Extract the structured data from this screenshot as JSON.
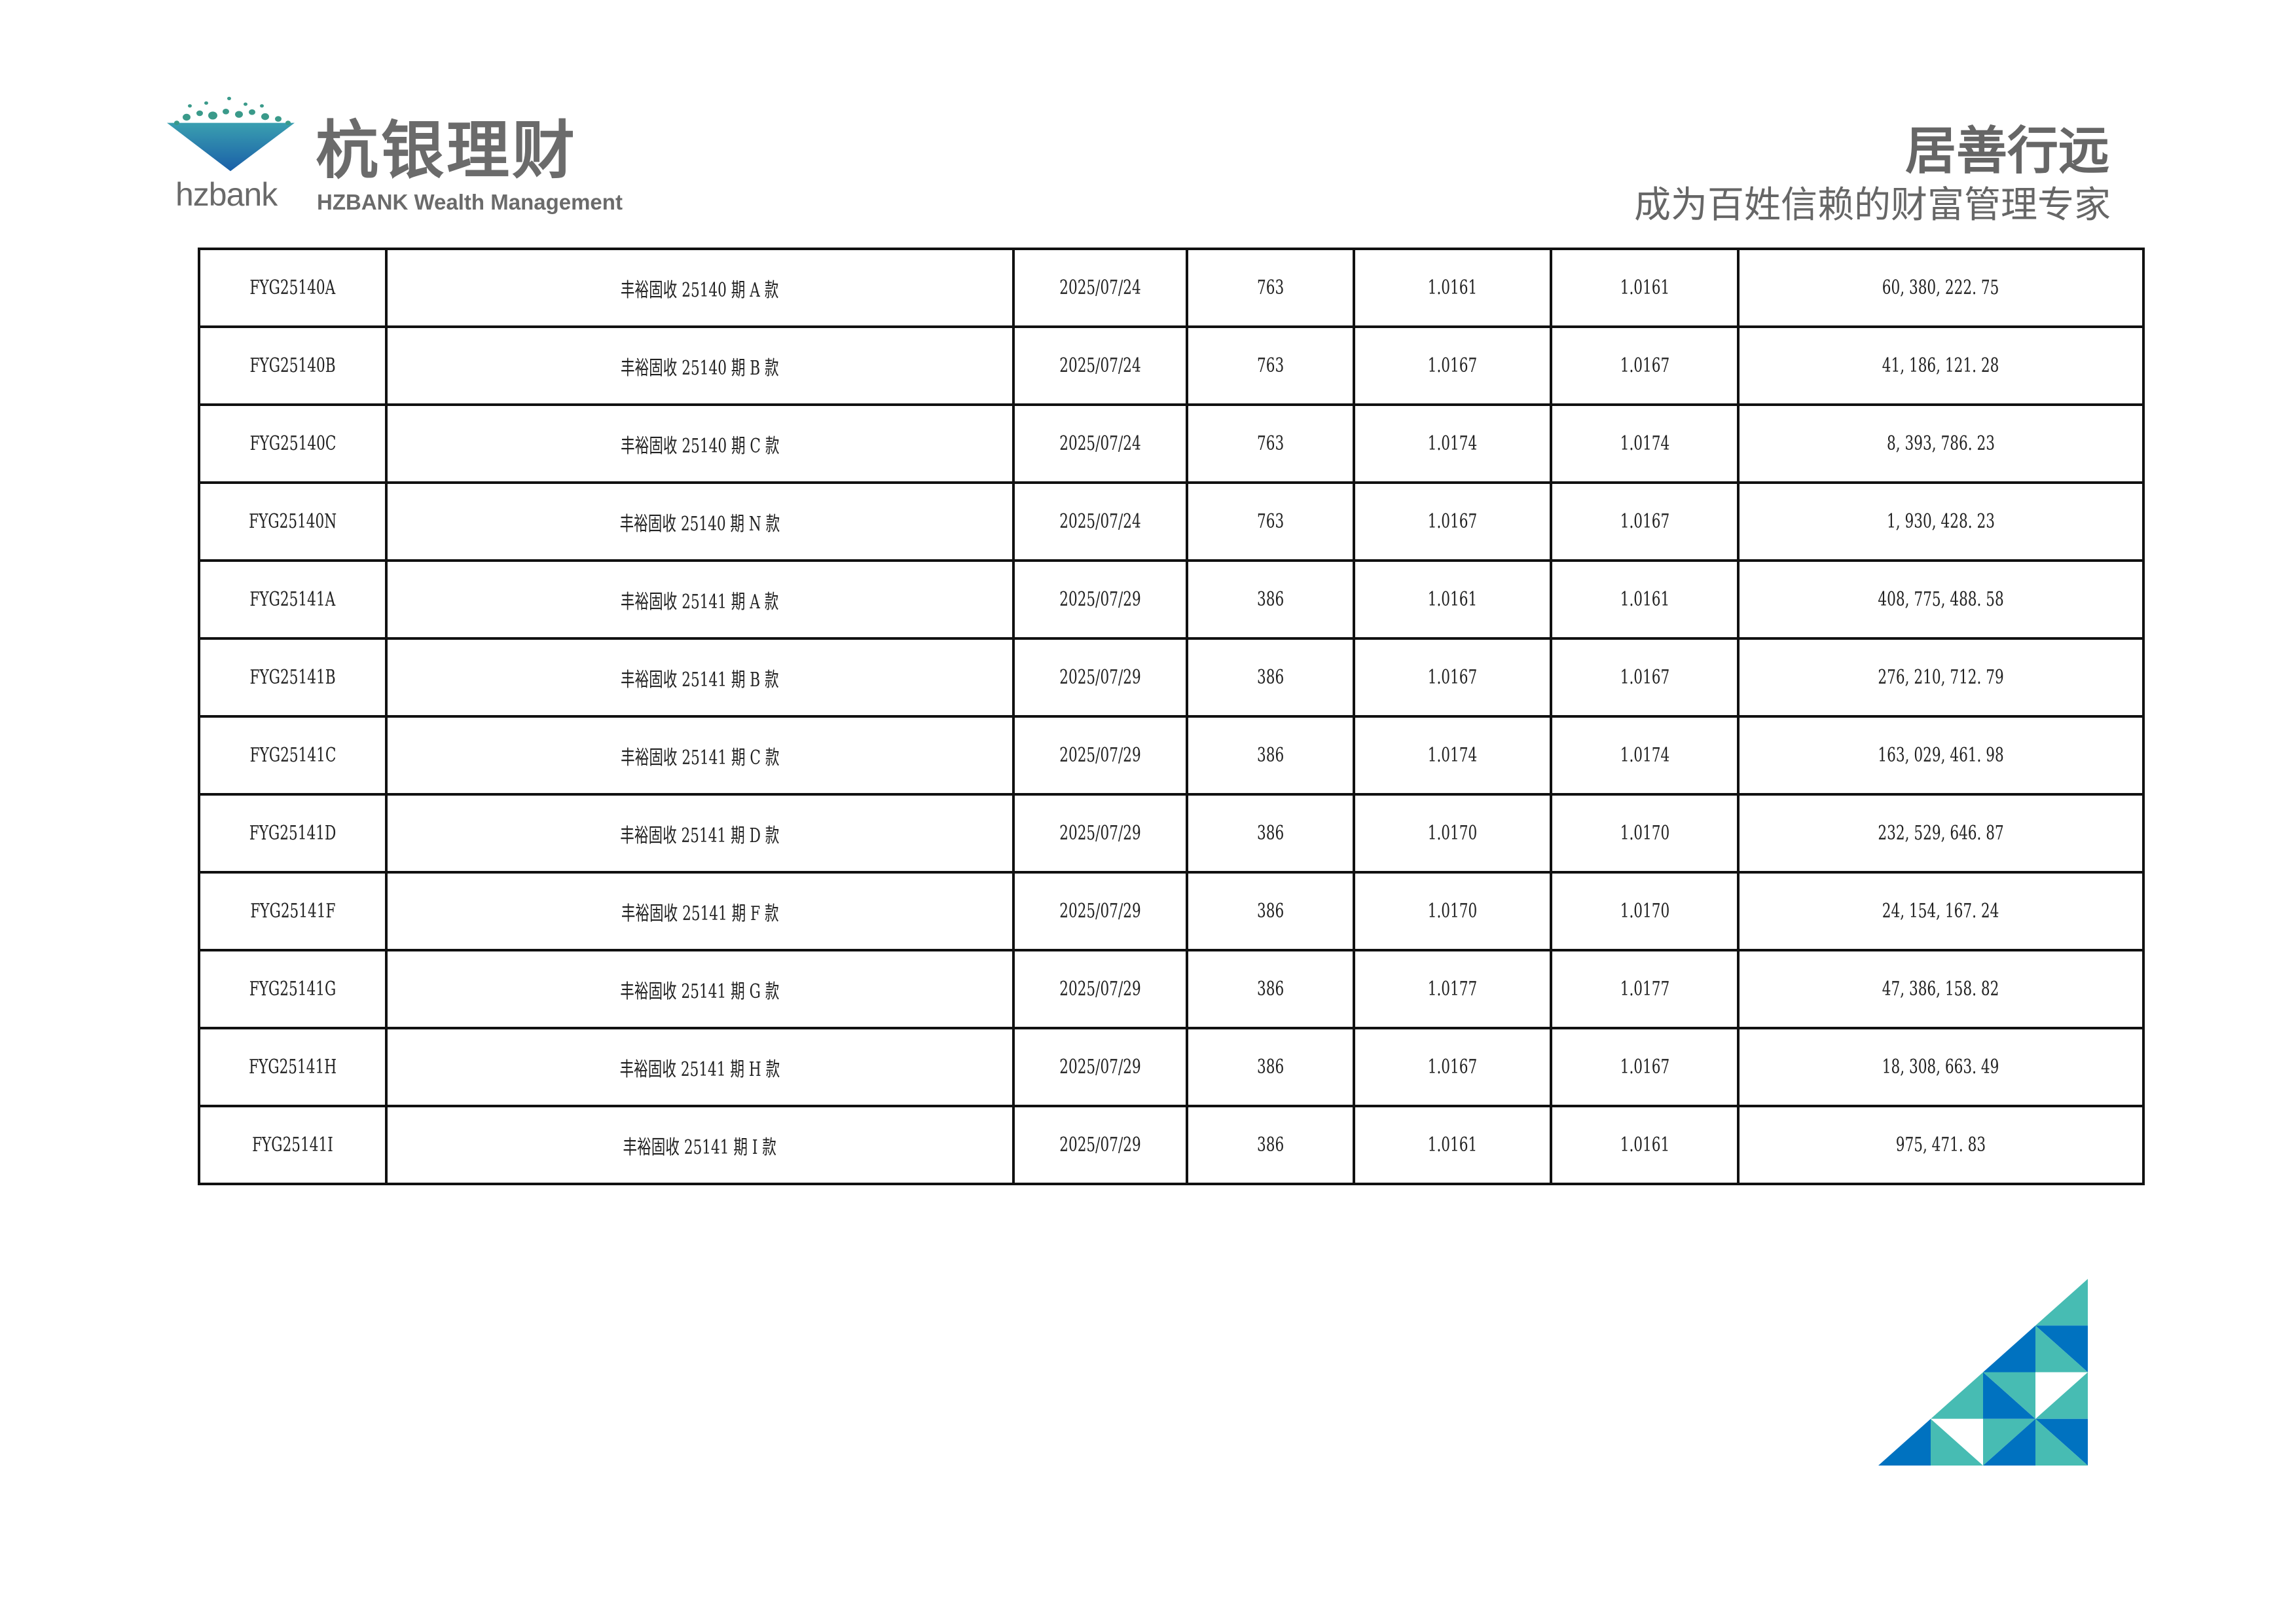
{
  "header": {
    "logo_brand": "hzbank",
    "logo_title": "杭银理财",
    "logo_subtitle": "HZBANK Wealth Management",
    "slogan": "居善行远",
    "slogan_sub": "成为百姓信赖的财富管理专家"
  },
  "colors": {
    "teal": "#47bcb3",
    "blue": "#0072c0",
    "text_gray": "#6b6b6b"
  },
  "table": {
    "rows": [
      [
        "FYG25140A",
        "丰裕固收 25140 期 A 款",
        "2025/07/24",
        "763",
        "1.0161",
        "1.0161",
        "60, 380, 222. 75"
      ],
      [
        "FYG25140B",
        "丰裕固收 25140 期 B 款",
        "2025/07/24",
        "763",
        "1.0167",
        "1.0167",
        "41, 186, 121. 28"
      ],
      [
        "FYG25140C",
        "丰裕固收 25140 期 C 款",
        "2025/07/24",
        "763",
        "1.0174",
        "1.0174",
        "8, 393, 786. 23"
      ],
      [
        "FYG25140N",
        "丰裕固收 25140 期 N 款",
        "2025/07/24",
        "763",
        "1.0167",
        "1.0167",
        "1, 930, 428. 23"
      ],
      [
        "FYG25141A",
        "丰裕固收 25141 期 A 款",
        "2025/07/29",
        "386",
        "1.0161",
        "1.0161",
        "408, 775, 488. 58"
      ],
      [
        "FYG25141B",
        "丰裕固收 25141 期 B 款",
        "2025/07/29",
        "386",
        "1.0167",
        "1.0167",
        "276, 210, 712. 79"
      ],
      [
        "FYG25141C",
        "丰裕固收 25141 期 C 款",
        "2025/07/29",
        "386",
        "1.0174",
        "1.0174",
        "163, 029, 461. 98"
      ],
      [
        "FYG25141D",
        "丰裕固收 25141 期 D 款",
        "2025/07/29",
        "386",
        "1.0170",
        "1.0170",
        "232, 529, 646. 87"
      ],
      [
        "FYG25141F",
        "丰裕固收 25141 期 F 款",
        "2025/07/29",
        "386",
        "1.0170",
        "1.0170",
        "24, 154, 167. 24"
      ],
      [
        "FYG25141G",
        "丰裕固收 25141 期 G 款",
        "2025/07/29",
        "386",
        "1.0177",
        "1.0177",
        "47, 386, 158. 82"
      ],
      [
        "FYG25141H",
        "丰裕固收 25141 期 H 款",
        "2025/07/29",
        "386",
        "1.0167",
        "1.0167",
        "18, 308, 663. 49"
      ],
      [
        "FYG25141I",
        "丰裕固收 25141 期 I 款",
        "2025/07/29",
        "386",
        "1.0161",
        "1.0161",
        "975, 471. 83"
      ]
    ]
  }
}
